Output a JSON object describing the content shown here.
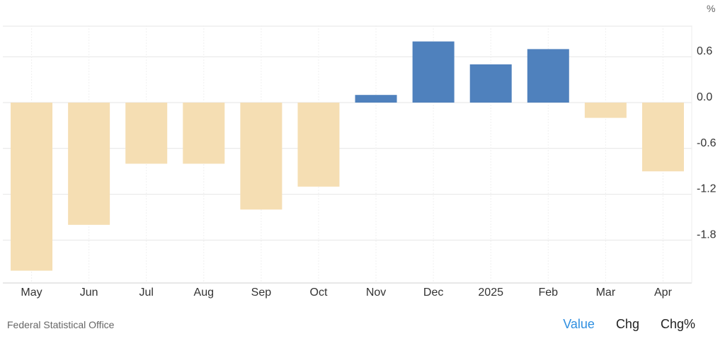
{
  "chart_data": {
    "type": "bar",
    "categories": [
      "May",
      "Jun",
      "Jul",
      "Aug",
      "Sep",
      "Oct",
      "Nov",
      "Dec",
      "2025",
      "Feb",
      "Mar",
      "Apr"
    ],
    "values": [
      -2.2,
      -1.6,
      -0.8,
      -0.8,
      -1.4,
      -1.1,
      0.1,
      0.8,
      0.5,
      0.7,
      -0.2,
      -0.9
    ],
    "unit": "%",
    "y_ticks": [
      "0.6",
      "0.0",
      "-0.6",
      "-1.2",
      "-1.8"
    ],
    "ylim": [
      -2.4,
      1.0
    ],
    "grid": true,
    "colors": {
      "positive": "#4f81bd",
      "negative": "#f5deb3",
      "grid": "#e6e6e6"
    }
  },
  "footer": {
    "source": "Federal Statistical Office",
    "toggles": [
      {
        "label": "Value",
        "active": true
      },
      {
        "label": "Chg",
        "active": false
      },
      {
        "label": "Chg%",
        "active": false
      }
    ]
  }
}
